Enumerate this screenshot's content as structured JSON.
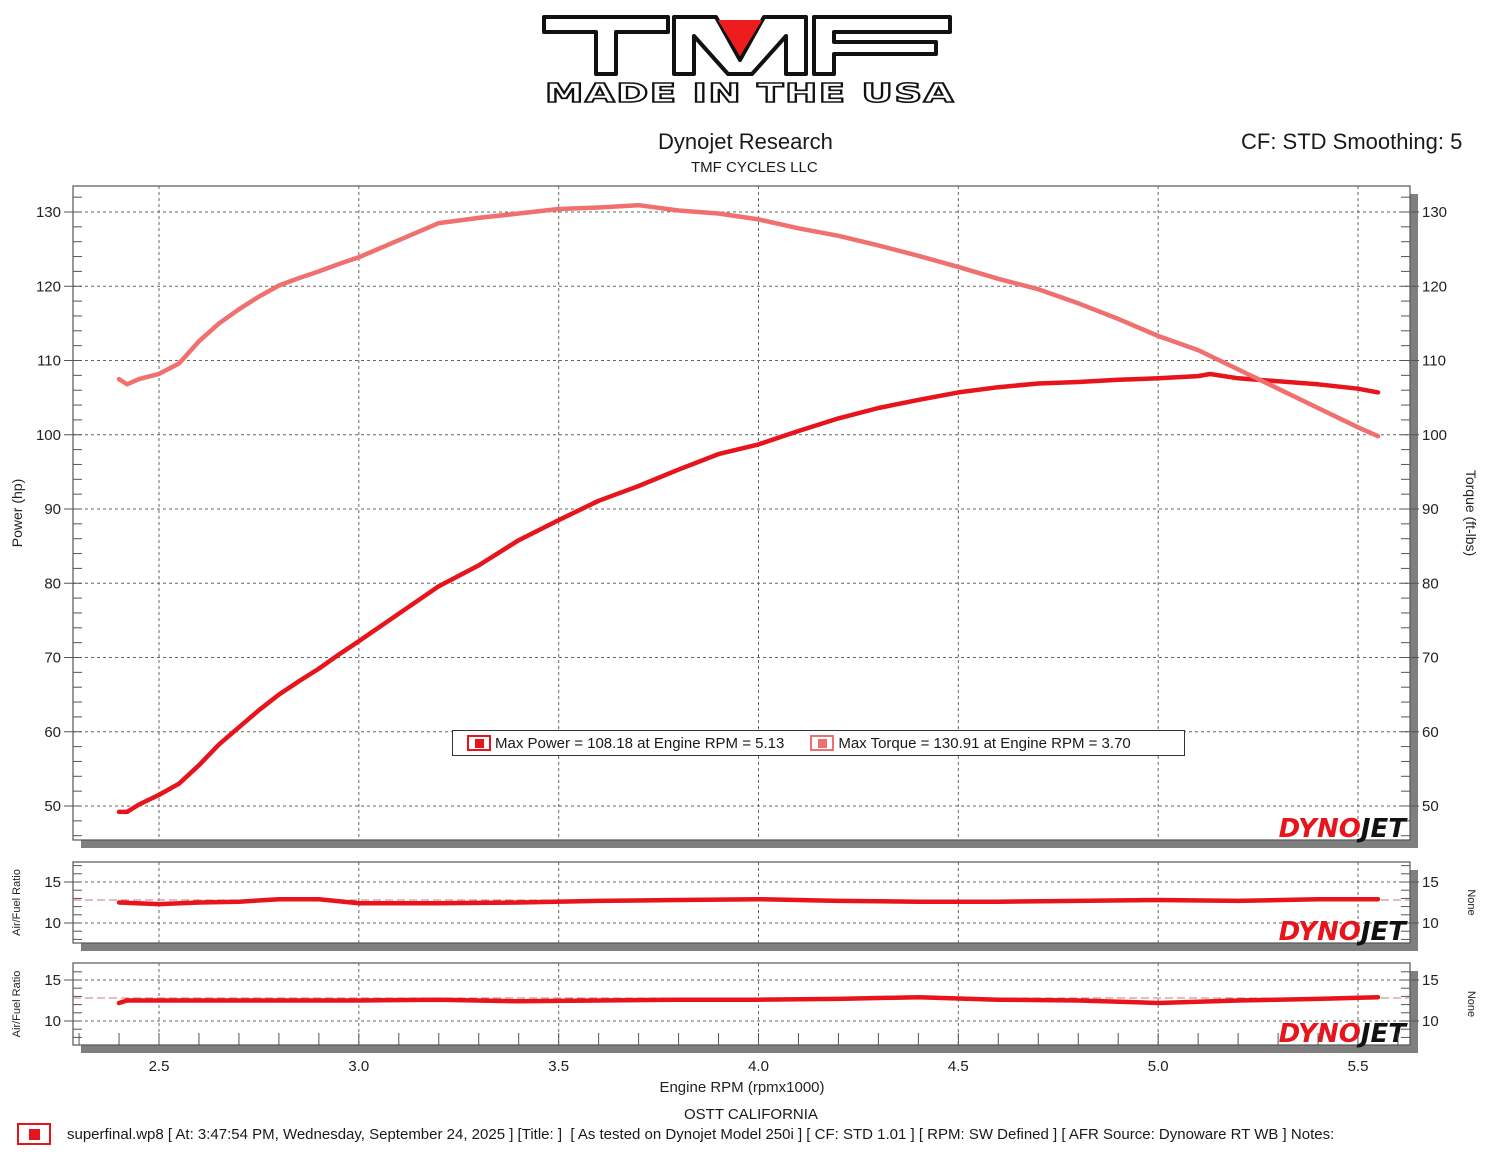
{
  "logo": {
    "brand_text": "TMF",
    "tagline": "MADE IN THE USA",
    "accent_color": "#ee1c1c"
  },
  "header": {
    "title": "Dynojet Research",
    "subtitle": "TMF CYCLES LLC",
    "correction_info": "CF: STD Smoothing: 5"
  },
  "legend": {
    "items": [
      {
        "label": "Max Power = 108.18 at Engine RPM = 5.13",
        "color": "#e8141b"
      },
      {
        "label": "Max Torque = 130.91 at Engine RPM = 3.70",
        "color": "#f07070"
      }
    ]
  },
  "watermark": {
    "text_red": "DYNO",
    "text_black": "JET"
  },
  "footer": {
    "location": "OSTT CALIFORNIA",
    "run_info": "superfinal.wp8 [ At: 3:47:54 PM, Wednesday, September 24, 2025 ] [Title: ]  [ As tested on Dynojet Model 250i ] [ CF: STD 1.01 ] [ RPM: SW Defined ] [ AFR Source: Dynoware RT WB ] Notes:"
  },
  "chart_data": [
    {
      "type": "line",
      "title": "Dynojet Research",
      "subtitle": "TMF CYCLES LLC",
      "xlabel": "Engine RPM (rpmx1000)",
      "ylabel": "Power (hp)",
      "y2label": "Torque (ft-lbs)",
      "xlim": [
        2.29,
        5.63
      ],
      "ylim": [
        45.5,
        133.5
      ],
      "xticks": [
        2.5,
        3.0,
        3.5,
        4.0,
        4.5,
        5.0,
        5.5
      ],
      "yticks": [
        50,
        60,
        70,
        80,
        90,
        100,
        110,
        120,
        130
      ],
      "grid": true,
      "legend_position": "center-bottom inside plot",
      "series": [
        {
          "name": "Power (hp)",
          "axis": "left",
          "color": "#e8141b",
          "x": [
            2.4,
            2.42,
            2.45,
            2.5,
            2.55,
            2.6,
            2.65,
            2.7,
            2.75,
            2.8,
            2.85,
            2.9,
            2.95,
            3.0,
            3.1,
            3.2,
            3.3,
            3.4,
            3.5,
            3.6,
            3.7,
            3.8,
            3.9,
            4.0,
            4.1,
            4.2,
            4.3,
            4.4,
            4.5,
            4.6,
            4.7,
            4.8,
            4.9,
            5.0,
            5.1,
            5.13,
            5.2,
            5.3,
            5.4,
            5.5,
            5.55
          ],
          "values": [
            49.2,
            49.2,
            50.2,
            51.5,
            53.0,
            55.5,
            58.3,
            60.6,
            62.9,
            65.0,
            66.8,
            68.5,
            70.4,
            72.2,
            75.9,
            79.6,
            82.4,
            85.8,
            88.5,
            91.1,
            93.1,
            95.3,
            97.4,
            98.7,
            100.5,
            102.2,
            103.6,
            104.7,
            105.7,
            106.4,
            106.9,
            107.1,
            107.4,
            107.6,
            107.9,
            108.18,
            107.6,
            107.2,
            106.8,
            106.2,
            105.7
          ]
        },
        {
          "name": "Torque (ft-lbs)",
          "axis": "right",
          "color": "#f07070",
          "x": [
            2.4,
            2.42,
            2.45,
            2.5,
            2.55,
            2.6,
            2.65,
            2.7,
            2.75,
            2.8,
            2.85,
            2.9,
            2.95,
            3.0,
            3.1,
            3.2,
            3.3,
            3.4,
            3.5,
            3.6,
            3.7,
            3.8,
            3.9,
            4.0,
            4.1,
            4.2,
            4.3,
            4.4,
            4.5,
            4.6,
            4.7,
            4.8,
            4.9,
            5.0,
            5.1,
            5.2,
            5.3,
            5.4,
            5.5,
            5.55
          ],
          "values": [
            107.5,
            106.8,
            107.5,
            108.2,
            109.6,
            112.6,
            115.0,
            116.9,
            118.6,
            120.1,
            121.1,
            122.0,
            123.0,
            123.9,
            126.2,
            128.5,
            129.2,
            129.8,
            130.4,
            130.6,
            130.91,
            130.2,
            129.8,
            129.0,
            127.8,
            126.8,
            125.5,
            124.1,
            122.6,
            121.0,
            119.6,
            117.7,
            115.6,
            113.3,
            111.4,
            108.8,
            106.2,
            103.6,
            101.0,
            99.8
          ]
        }
      ],
      "annotations": [
        "Max Power = 108.18 at Engine RPM = 5.13",
        "Max Torque = 130.91 at Engine RPM = 3.70",
        "CF: STD Smoothing: 5"
      ]
    },
    {
      "type": "line",
      "title": "",
      "xlabel": "Engine RPM (rpmx1000)",
      "ylabel": "Air/Fuel Ratio",
      "y2label": "None",
      "ylim": [
        7.5,
        17.5
      ],
      "yticks": [
        10,
        15
      ],
      "grid": true,
      "reference_line": 12.8,
      "series": [
        {
          "name": "Air/Fuel Ratio (pane 1)",
          "color": "#e8141b",
          "x": [
            2.4,
            2.5,
            2.6,
            2.7,
            2.8,
            2.9,
            3.0,
            3.2,
            3.4,
            3.6,
            3.8,
            4.0,
            4.2,
            4.4,
            4.6,
            4.8,
            5.0,
            5.2,
            5.4,
            5.55
          ],
          "values": [
            12.5,
            12.3,
            12.5,
            12.6,
            12.9,
            12.9,
            12.4,
            12.4,
            12.5,
            12.7,
            12.8,
            12.9,
            12.7,
            12.6,
            12.6,
            12.7,
            12.8,
            12.7,
            12.9,
            12.9
          ]
        }
      ]
    },
    {
      "type": "line",
      "title": "",
      "xlabel": "Engine RPM (rpmx1000)",
      "ylabel": "Air/Fuel Ratio",
      "y2label": "None",
      "ylim": [
        7.5,
        17.5
      ],
      "yticks": [
        10,
        15
      ],
      "grid": true,
      "reference_line": 12.8,
      "series": [
        {
          "name": "Air/Fuel Ratio (pane 2)",
          "color": "#e8141b",
          "x": [
            2.4,
            2.42,
            2.5,
            2.6,
            2.8,
            3.0,
            3.2,
            3.4,
            3.6,
            3.8,
            4.0,
            4.2,
            4.4,
            4.6,
            4.8,
            5.0,
            5.2,
            5.4,
            5.55
          ],
          "values": [
            12.2,
            12.5,
            12.5,
            12.5,
            12.5,
            12.5,
            12.6,
            12.4,
            12.5,
            12.6,
            12.6,
            12.7,
            12.9,
            12.6,
            12.5,
            12.2,
            12.5,
            12.7,
            12.9
          ]
        }
      ]
    }
  ]
}
